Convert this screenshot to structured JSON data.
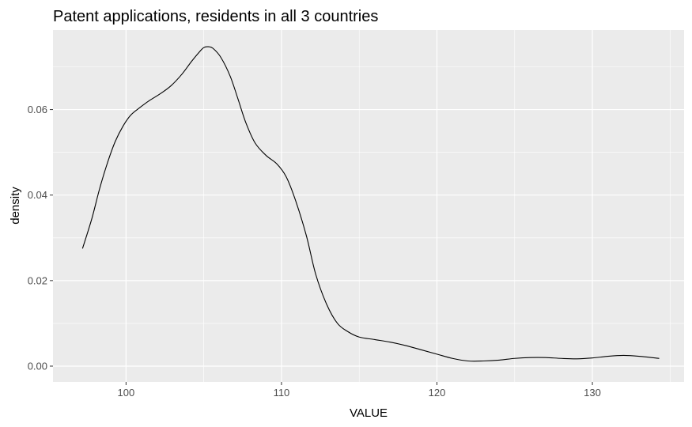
{
  "chart_data": {
    "type": "line",
    "subtype": "density",
    "title": "Patent applications, residents in all 3 countries",
    "xlabel": "VALUE",
    "ylabel": "density",
    "xlim": [
      95.3,
      135.9
    ],
    "ylim": [
      -0.0037,
      0.0786
    ],
    "x_ticks": [
      100,
      110,
      120,
      130
    ],
    "x_tick_labels": [
      "100",
      "110",
      "120",
      "130"
    ],
    "y_ticks": [
      0.0,
      0.02,
      0.04,
      0.06
    ],
    "y_tick_labels": [
      "0.00",
      "0.02",
      "0.04",
      "0.06"
    ],
    "grid": true,
    "legend": "none",
    "colors": {
      "panel_bg": "#ebebeb",
      "grid_major": "#ffffff",
      "line": "#000000"
    },
    "series": [
      {
        "x": [
          97.2,
          97.8,
          98.3,
          98.8,
          99.3,
          99.8,
          100.3,
          100.9,
          101.5,
          102.2,
          102.9,
          103.6,
          104.2,
          104.7,
          105.0,
          105.3,
          105.6,
          106.1,
          106.7,
          107.2,
          107.7,
          108.3,
          109.0,
          109.7,
          110.3,
          110.9,
          111.6,
          112.2,
          112.9,
          113.6,
          114.3,
          115.0,
          116.0,
          117.0,
          118.0,
          119.0,
          120.0,
          121.0,
          122.0,
          123.0,
          124.0,
          125.0,
          126.0,
          127.0,
          128.0,
          129.0,
          130.0,
          131.0,
          132.0,
          133.0,
          134.3
        ],
        "y": [
          0.0275,
          0.0345,
          0.0415,
          0.0475,
          0.0525,
          0.0561,
          0.0587,
          0.0605,
          0.0621,
          0.0637,
          0.0656,
          0.0683,
          0.0712,
          0.0734,
          0.0745,
          0.0747,
          0.0743,
          0.0722,
          0.0678,
          0.0625,
          0.057,
          0.0522,
          0.0493,
          0.0473,
          0.0443,
          0.0388,
          0.0305,
          0.0215,
          0.0145,
          0.01,
          0.008,
          0.0068,
          0.0062,
          0.0056,
          0.0048,
          0.0038,
          0.0028,
          0.0018,
          0.0012,
          0.0012,
          0.0014,
          0.0018,
          0.002,
          0.002,
          0.0018,
          0.0017,
          0.0019,
          0.0023,
          0.0025,
          0.0023,
          0.0018
        ]
      }
    ]
  }
}
